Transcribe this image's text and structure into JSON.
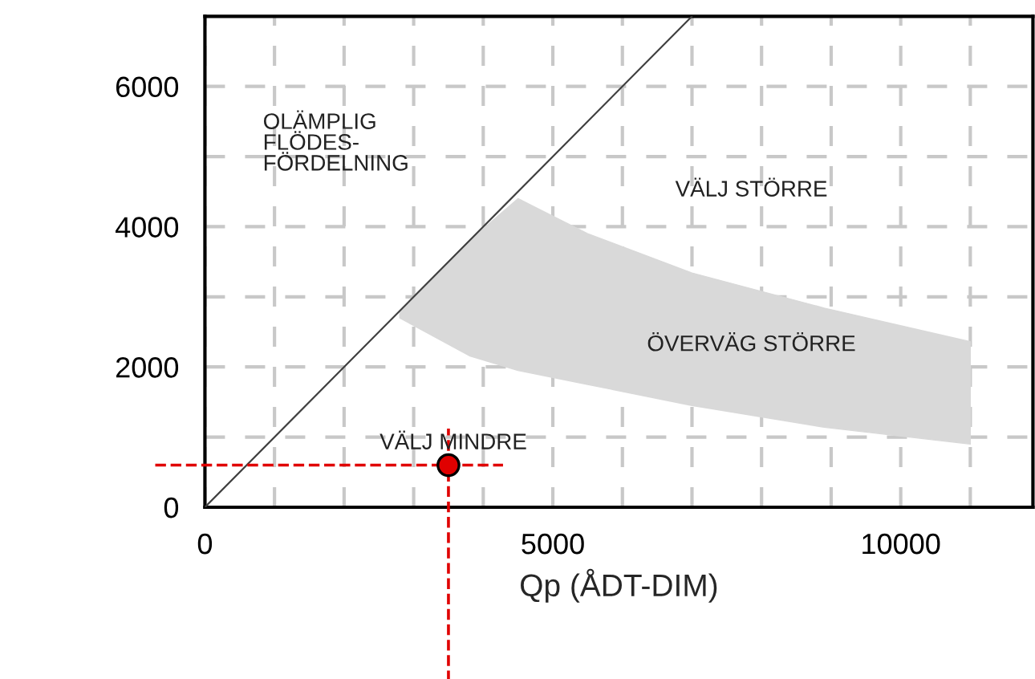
{
  "chart_data": {
    "type": "line",
    "xlabel": "Qp (ÅDT-DIM)",
    "xlim": [
      0,
      11900
    ],
    "ylim": [
      0,
      7000
    ],
    "xticks": [
      0,
      {
        "value": 1000,
        "label": null
      },
      {
        "value": 2000,
        "label": null
      },
      {
        "value": 3000,
        "label": null
      },
      {
        "value": 4000,
        "label": null
      },
      5000,
      {
        "value": 6000,
        "label": null
      },
      {
        "value": 7000,
        "label": null
      },
      {
        "value": 8000,
        "label": null
      },
      {
        "value": 9000,
        "label": null
      },
      10000,
      {
        "value": 11000,
        "label": null
      }
    ],
    "yticks": [
      0,
      {
        "value": 1000,
        "label": null
      },
      2000,
      {
        "value": 3000,
        "label": null
      },
      4000,
      {
        "value": 5000,
        "label": null
      },
      6000
    ],
    "grid": true,
    "series": [
      {
        "color": "#d9d9d9",
        "x": [
          2800,
          3800,
          4500,
          5500,
          7000,
          8900,
          11000
        ],
        "values": [
          null,
          null,
          null,
          null,
          null,
          null,
          null
        ],
        "upper": [
          2800,
          3800,
          4400,
          3900,
          3340,
          2840,
          2360
        ],
        "lower": [
          2700,
          2160,
          1950,
          1750,
          1450,
          1140,
          900
        ]
      },
      {
        "color": "#404040",
        "x": [
          0,
          7000
        ],
        "values": [
          0,
          7000
        ],
        "line_style": "solid"
      },
      {
        "type": "scatter",
        "color": "#e00000",
        "x": [
          3500
        ],
        "values": [
          600
        ],
        "marker": "circle"
      }
    ],
    "ref_lines": [
      {
        "axis": "x",
        "value": 3500,
        "color": "#e00000",
        "line_style": "dashed"
      },
      {
        "axis": "y",
        "value": 600,
        "color": "#e00000",
        "line_style": "dashed"
      }
    ],
    "annotations": [
      "OLÄMPLIG\nFLÖDES-\nFÖRDELNING",
      "VÄLJ STÖRRE",
      "ÖVERVÄG STÖRRE",
      "VÄLJ MINDRE"
    ]
  }
}
